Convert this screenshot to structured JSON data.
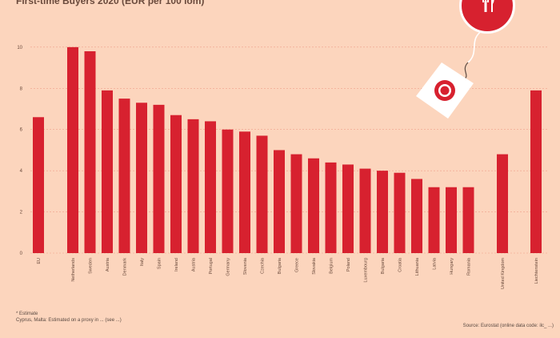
{
  "header": {
    "title": "First-time Buyers 2020 (EUR per 100 lom)"
  },
  "footnote": {
    "line1": "* Estimate",
    "line2": "Cyprus, Malta: Estimated on a proxy in ... (see ...)"
  },
  "source": "Source: Eurostat (online data code: ilc_ ...)",
  "colors": {
    "background": "#fcd5bd",
    "bar": "#d7212f",
    "grid": "#f0a08c",
    "text": "#6a4a3c"
  },
  "icons": {
    "badge": "fork-knife-icon",
    "tag": "price-tag-icon"
  },
  "chart_data": {
    "type": "bar",
    "title": "First-time Buyers 2020 (EUR per 100 lom)",
    "xlabel": "",
    "ylabel": "",
    "ylim": [
      0,
      10.5
    ],
    "yticks": [
      0,
      2,
      4,
      6,
      8,
      10
    ],
    "grid": true,
    "categories": [
      "EU",
      "Netherlands",
      "Sweden",
      "Austria",
      "Denmark",
      "Italy",
      "Spain",
      "Ireland",
      "Austria",
      "Portugal",
      "Germany",
      "Slovenia",
      "Czechia",
      "Bulgaria",
      "Greece",
      "Slovakia",
      "Belgium",
      "Poland",
      "Luxembourg",
      "Bulgaria",
      "Croatia",
      "Lithuania",
      "Latvia",
      "Hungary",
      "Romania",
      "United Kingdom",
      "Liechtenstein"
    ],
    "values": [
      6.6,
      10.0,
      9.8,
      7.9,
      7.5,
      7.3,
      7.2,
      6.7,
      6.5,
      6.4,
      6.0,
      5.9,
      5.7,
      5.0,
      4.8,
      4.6,
      4.4,
      4.3,
      4.1,
      4.0,
      3.9,
      3.6,
      3.2,
      3.2,
      3.2,
      4.8,
      7.9
    ]
  }
}
